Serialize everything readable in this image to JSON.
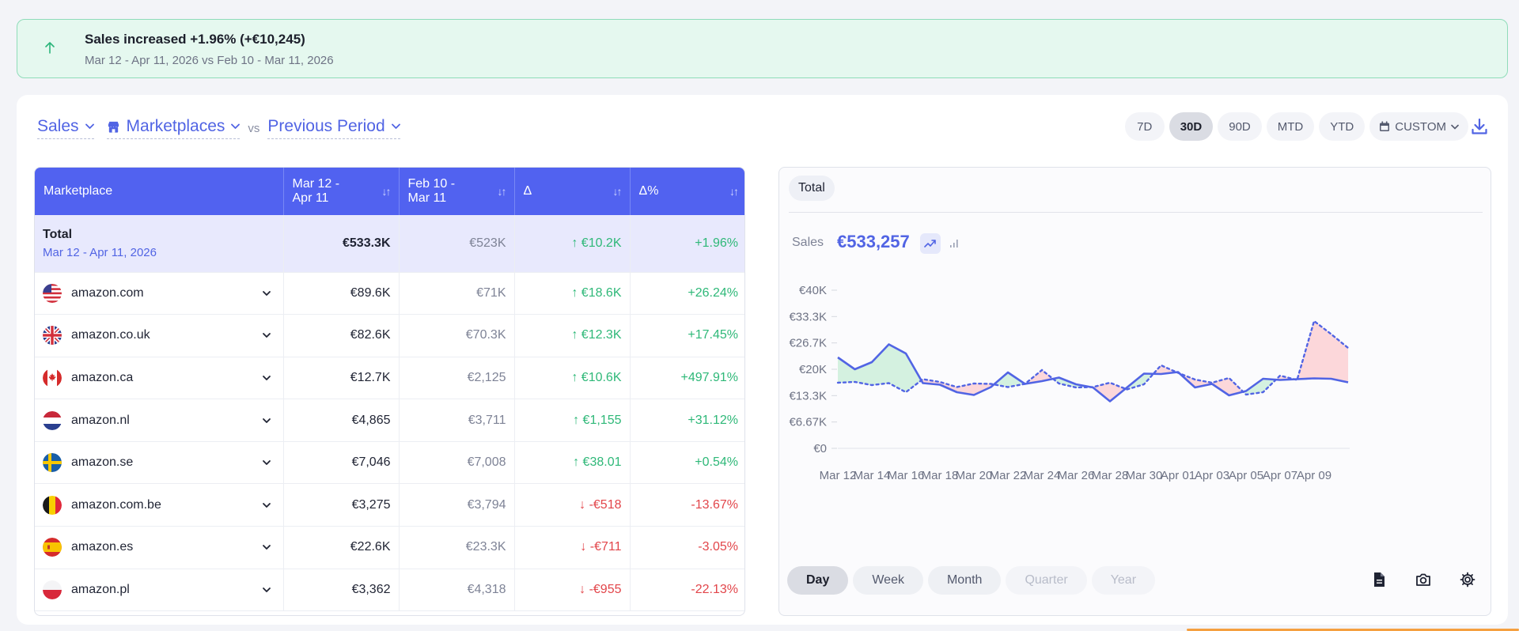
{
  "banner": {
    "icon": "arrow-up-icon",
    "title": "Sales increased +1.96% (+€10,245)",
    "subtitle": "Mar 12 - Apr 11, 2026 vs Feb 10 - Mar 11, 2026"
  },
  "toolbar": {
    "metric": "Sales",
    "group": "Marketplaces",
    "vs": "vs",
    "compare": "Previous Period",
    "periods": [
      "7D",
      "30D",
      "90D",
      "MTD",
      "YTD"
    ],
    "active_period": "30D",
    "custom": "CUSTOM"
  },
  "table": {
    "headers": [
      "Marketplace",
      "Mar 12 -\nApr 11",
      "Feb 10 -\nMar 11",
      "Δ",
      "Δ%"
    ],
    "total": {
      "label": "Total",
      "period": "Mar 12 - Apr 11, 2026",
      "current": "€533.3K",
      "previous": "€523K",
      "delta": "↑ €10.2K",
      "delta_pct": "+1.96%"
    },
    "rows": [
      {
        "name": "amazon.com",
        "flag": "us",
        "current": "€89.6K",
        "previous": "€71K",
        "delta": "↑ €18.6K",
        "delta_pct": "+26.24%",
        "trend": "pos"
      },
      {
        "name": "amazon.co.uk",
        "flag": "uk",
        "current": "€82.6K",
        "previous": "€70.3K",
        "delta": "↑ €12.3K",
        "delta_pct": "+17.45%",
        "trend": "pos"
      },
      {
        "name": "amazon.ca",
        "flag": "ca",
        "current": "€12.7K",
        "previous": "€2,125",
        "delta": "↑ €10.6K",
        "delta_pct": "+497.91%",
        "trend": "pos"
      },
      {
        "name": "amazon.nl",
        "flag": "nl",
        "current": "€4,865",
        "previous": "€3,711",
        "delta": "↑ €1,155",
        "delta_pct": "+31.12%",
        "trend": "pos"
      },
      {
        "name": "amazon.se",
        "flag": "se",
        "current": "€7,046",
        "previous": "€7,008",
        "delta": "↑ €38.01",
        "delta_pct": "+0.54%",
        "trend": "pos"
      },
      {
        "name": "amazon.com.be",
        "flag": "be",
        "current": "€3,275",
        "previous": "€3,794",
        "delta": "↓ -€518",
        "delta_pct": "-13.67%",
        "trend": "neg"
      },
      {
        "name": "amazon.es",
        "flag": "es",
        "current": "€22.6K",
        "previous": "€23.3K",
        "delta": "↓ -€711",
        "delta_pct": "-3.05%",
        "trend": "neg"
      },
      {
        "name": "amazon.pl",
        "flag": "pl",
        "current": "€3,362",
        "previous": "€4,318",
        "delta": "↓ -€955",
        "delta_pct": "-22.13%",
        "trend": "neg"
      }
    ]
  },
  "chart_panel": {
    "tab": "Total",
    "metric_label": "Sales",
    "metric_value": "€533,257",
    "granularity": [
      "Day",
      "Week",
      "Month",
      "Quarter",
      "Year"
    ],
    "active_granularity": "Day",
    "disabled_granularity": [
      "Quarter",
      "Year"
    ]
  },
  "colors": {
    "accent": "#5164e4",
    "header_bg": "#5162f0",
    "positive": "#2eb878",
    "negative": "#e2454a",
    "banner_bg": "#e5f8ef"
  },
  "chart_data": {
    "type": "line",
    "x": [
      "Mar 12",
      "Mar 13",
      "Mar 14",
      "Mar 15",
      "Mar 16",
      "Mar 17",
      "Mar 18",
      "Mar 19",
      "Mar 20",
      "Mar 21",
      "Mar 22",
      "Mar 23",
      "Mar 24",
      "Mar 25",
      "Mar 26",
      "Mar 27",
      "Mar 28",
      "Mar 29",
      "Mar 30",
      "Mar 31",
      "Apr 01",
      "Apr 02",
      "Apr 03",
      "Apr 04",
      "Apr 05",
      "Apr 06",
      "Apr 07",
      "Apr 08",
      "Apr 09",
      "Apr 10",
      "Apr 11"
    ],
    "x_tick_labels": [
      "Mar 12",
      "Mar 14",
      "Mar 16",
      "Mar 18",
      "Mar 20",
      "Mar 22",
      "Mar 24",
      "Mar 26",
      "Mar 28",
      "Mar 30",
      "Apr 01",
      "Apr 03",
      "Apr 05",
      "Apr 07",
      "Apr 09"
    ],
    "y_tick_labels": [
      "€0",
      "€6.67K",
      "€13.3K",
      "€20K",
      "€26.7K",
      "€33.3K",
      "€40K"
    ],
    "ylim": [
      0,
      40000
    ],
    "series": [
      {
        "style": "solid",
        "color": "#5164e4",
        "values": [
          23000,
          20000,
          21800,
          26300,
          24000,
          16500,
          16100,
          14200,
          13500,
          15500,
          19200,
          16300,
          17000,
          17900,
          16200,
          15400,
          11900,
          15400,
          18900,
          18800,
          19300,
          15400,
          16300,
          13400,
          14500,
          17600,
          17300,
          17500,
          17700,
          17600,
          16700
        ]
      },
      {
        "style": "dashed",
        "color": "#5164e4",
        "values": [
          16600,
          16800,
          16000,
          16500,
          14200,
          17500,
          16800,
          15500,
          16400,
          16300,
          15500,
          16300,
          19800,
          16400,
          15400,
          15500,
          16600,
          14900,
          16200,
          21000,
          19100,
          17400,
          16600,
          17800,
          13600,
          14200,
          18400,
          17300,
          32200,
          28900,
          25400
        ]
      }
    ],
    "grid": false,
    "legend": "none"
  }
}
